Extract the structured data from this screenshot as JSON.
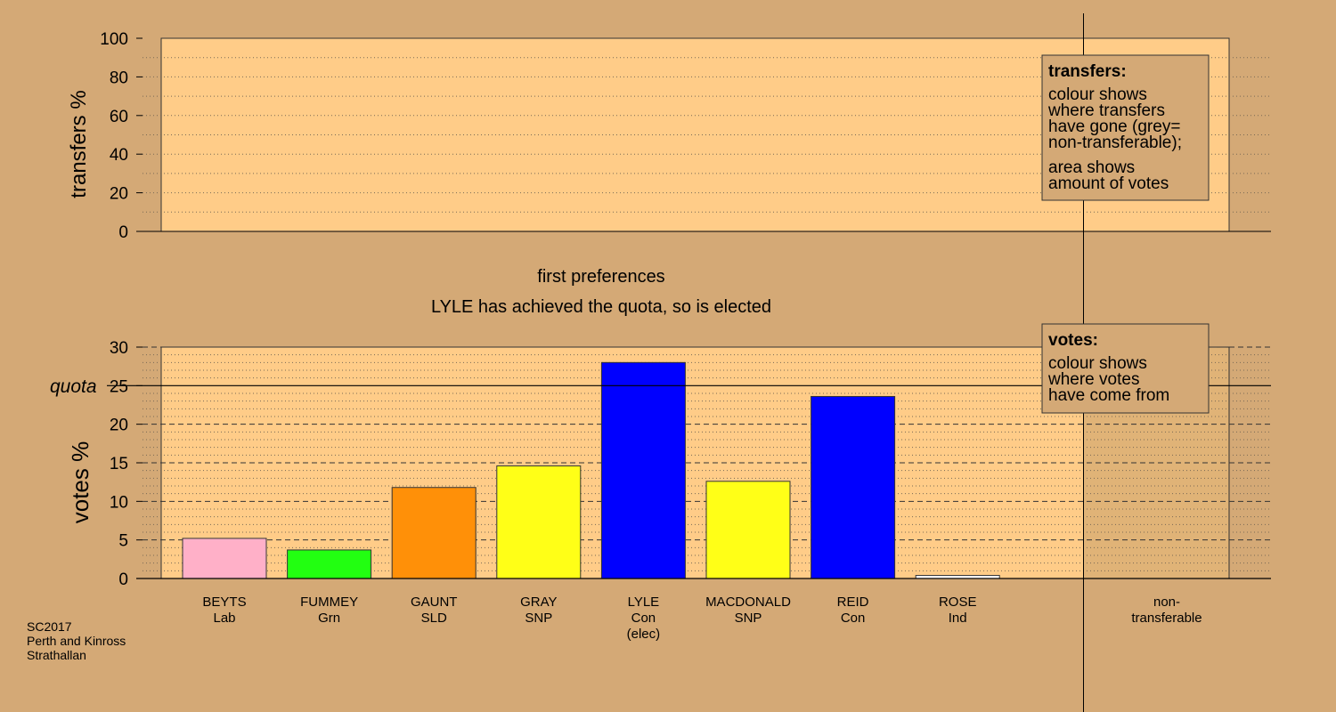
{
  "top_panel": {
    "ylabel": "transfers %",
    "yticks": [
      0,
      20,
      40,
      60,
      80,
      100
    ],
    "legend": {
      "title": "transfers:",
      "lines": [
        "colour shows",
        "where transfers",
        "have gone (grey=",
        "non-transferable);",
        "area shows",
        "amount of votes"
      ]
    }
  },
  "headings": {
    "stage": "first preferences",
    "message": "LYLE has achieved the quota, so is elected"
  },
  "footer": [
    "SC2017",
    "Perth and Kinross",
    "Strathallan"
  ],
  "chart_data": {
    "type": "bar",
    "ylabel": "votes %",
    "ylim": [
      0,
      30
    ],
    "yticks": [
      0,
      5,
      10,
      15,
      20,
      25,
      30
    ],
    "quota": {
      "label": "quota",
      "value": 25
    },
    "categories": [
      {
        "name": "BEYTS",
        "party": "Lab",
        "note": "",
        "value": 5.2,
        "color": "#FFB0C8"
      },
      {
        "name": "FUMMEY",
        "party": "Grn",
        "note": "",
        "value": 3.7,
        "color": "#22FF11"
      },
      {
        "name": "GAUNT",
        "party": "SLD",
        "note": "",
        "value": 11.8,
        "color": "#FF9008"
      },
      {
        "name": "GRAY",
        "party": "SNP",
        "note": "",
        "value": 14.6,
        "color": "#FFFF17"
      },
      {
        "name": "LYLE",
        "party": "Con",
        "note": "(elec)",
        "value": 28.0,
        "color": "#0000FF"
      },
      {
        "name": "MACDONALD",
        "party": "SNP",
        "note": "",
        "value": 12.6,
        "color": "#FFFF17"
      },
      {
        "name": "REID",
        "party": "Con",
        "note": "",
        "value": 23.6,
        "color": "#0000FF"
      },
      {
        "name": "ROSE",
        "party": "Ind",
        "note": "",
        "value": 0.4,
        "color": "#FFFFFF"
      }
    ],
    "non_transferable": {
      "label_lines": [
        "non-",
        "transferable"
      ],
      "value": 0
    },
    "legend": {
      "title": "votes:",
      "lines": [
        "colour shows",
        "where votes",
        "have come from"
      ]
    }
  },
  "colors": {
    "background": "#D4A976",
    "plot_area": "#FFCC88"
  }
}
